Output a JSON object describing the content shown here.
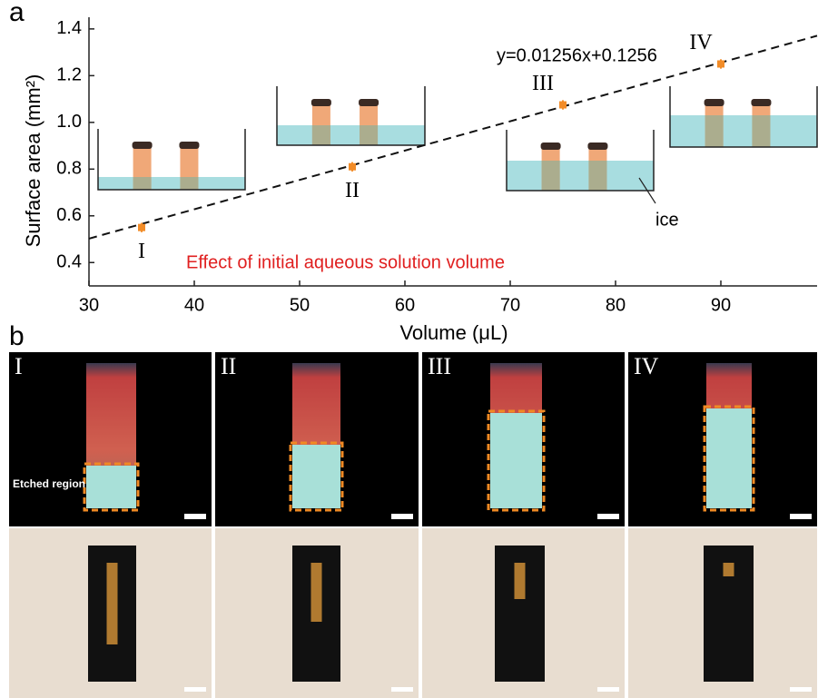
{
  "panel_labels": [
    "a",
    "b"
  ],
  "chart_data": {
    "type": "scatter",
    "x_label": "Volume (μL)",
    "y_label": "Surface area (mm²)",
    "subtitle": "Effect of initial aqueous solution volume",
    "annotation": "ice",
    "x": [
      35,
      55,
      75,
      90
    ],
    "values": [
      0.55,
      0.81,
      1.075,
      1.25
    ],
    "errors": [
      0.02,
      0.02,
      0.02,
      0.02
    ],
    "point_labels": [
      "I",
      "II",
      "III",
      "IV"
    ],
    "color": "#f28c28",
    "fit": {
      "slope": 0.01256,
      "intercept": 0.1256,
      "label": "y=0.01256x+0.1256"
    },
    "xlim": [
      30,
      99
    ],
    "xticks": [
      30,
      40,
      50,
      60,
      70,
      80,
      90
    ],
    "ylim": [
      0.3,
      1.45
    ],
    "yticks": [
      0.4,
      0.6,
      0.8,
      {
        "value": 1,
        "label": "1.0"
      },
      1.2,
      1.4
    ]
  },
  "images": {
    "labels": [
      "I",
      "II",
      "III",
      "IV"
    ],
    "annotation": "Etched region"
  }
}
